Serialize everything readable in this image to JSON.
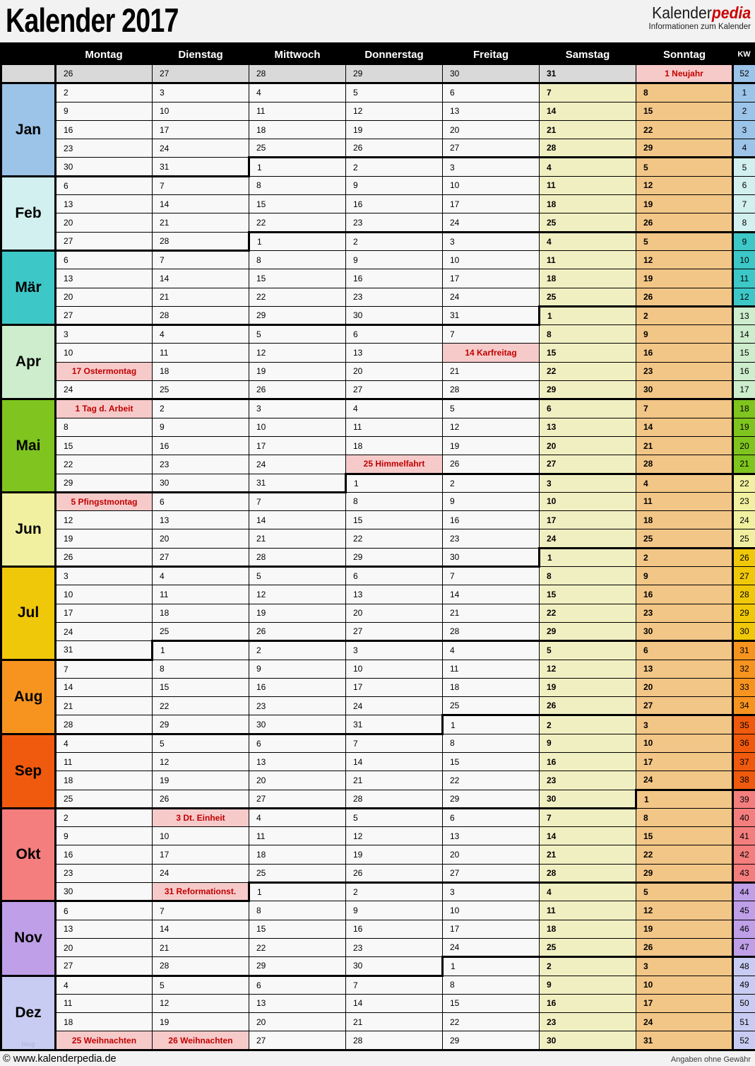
{
  "header": {
    "title": "Kalender 2017",
    "logo": {
      "part1": "Kalender",
      "part2": "pedia",
      "subtitle": "Informationen zum Kalender"
    }
  },
  "table": {
    "day_headers": [
      "Montag",
      "Dienstag",
      "Mittwoch",
      "Donnerstag",
      "Freitag",
      "Samstag",
      "Sonntag"
    ],
    "kw_header": "KW",
    "months": [
      {
        "label": "",
        "c": "gray",
        "weeks": [
          {
            "kw": "52",
            "kc": "jan",
            "days": [
              "26|g",
              "27|g",
              "28|g",
              "29|g",
              "30|g",
              "31|g",
              "1 Neujahr|h"
            ]
          }
        ]
      },
      {
        "label": "Jan",
        "c": "jan",
        "weeks": [
          {
            "kw": "1",
            "kc": "jan",
            "days": [
              "2",
              "3",
              "4",
              "5",
              "6",
              "7",
              "8"
            ]
          },
          {
            "kw": "2",
            "kc": "jan",
            "days": [
              "9",
              "10",
              "11",
              "12",
              "13",
              "14",
              "15"
            ]
          },
          {
            "kw": "3",
            "kc": "jan",
            "days": [
              "16",
              "17",
              "18",
              "19",
              "20",
              "21",
              "22"
            ]
          },
          {
            "kw": "4",
            "kc": "jan",
            "days": [
              "23",
              "24",
              "25",
              "26",
              "27",
              "28",
              "29"
            ]
          },
          {
            "kw": "5",
            "kc": "feb",
            "kt": 1,
            "days": [
              "30",
              "31",
              "1|n",
              "2|n",
              "3|n",
              "4|n",
              "5|n"
            ]
          }
        ]
      },
      {
        "label": "Feb",
        "c": "feb",
        "weeks": [
          {
            "kw": "6",
            "kc": "feb",
            "days": [
              "6",
              "7",
              "8",
              "9",
              "10",
              "11",
              "12"
            ]
          },
          {
            "kw": "7",
            "kc": "feb",
            "days": [
              "13",
              "14",
              "15",
              "16",
              "17",
              "18",
              "19"
            ]
          },
          {
            "kw": "8",
            "kc": "feb",
            "days": [
              "20",
              "21",
              "22",
              "23",
              "24",
              "25",
              "26"
            ]
          },
          {
            "kw": "9",
            "kc": "mar",
            "kt": 1,
            "days": [
              "27",
              "28",
              "1|n",
              "2|n",
              "3|n",
              "4|n",
              "5|n"
            ]
          }
        ]
      },
      {
        "label": "Mär",
        "c": "mar",
        "weeks": [
          {
            "kw": "10",
            "kc": "mar",
            "days": [
              "6",
              "7",
              "8",
              "9",
              "10",
              "11",
              "12"
            ]
          },
          {
            "kw": "11",
            "kc": "mar",
            "days": [
              "13",
              "14",
              "15",
              "16",
              "17",
              "18",
              "19"
            ]
          },
          {
            "kw": "12",
            "kc": "mar",
            "days": [
              "20",
              "21",
              "22",
              "23",
              "24",
              "25",
              "26"
            ]
          },
          {
            "kw": "13",
            "kc": "apr",
            "kt": 1,
            "days": [
              "27",
              "28",
              "29",
              "30",
              "31",
              "1|n",
              "2|n"
            ]
          }
        ]
      },
      {
        "label": "Apr",
        "c": "apr",
        "weeks": [
          {
            "kw": "14",
            "kc": "apr",
            "days": [
              "3",
              "4",
              "5",
              "6",
              "7",
              "8",
              "9"
            ]
          },
          {
            "kw": "15",
            "kc": "apr",
            "days": [
              "10",
              "11",
              "12",
              "13",
              "14 Karfreitag|h",
              "15",
              "16"
            ]
          },
          {
            "kw": "16",
            "kc": "apr",
            "days": [
              "17 Ostermontag|h",
              "18",
              "19",
              "20",
              "21",
              "22",
              "23"
            ]
          },
          {
            "kw": "17",
            "kc": "apr",
            "days": [
              "24",
              "25",
              "26",
              "27",
              "28",
              "29",
              "30"
            ]
          }
        ]
      },
      {
        "label": "Mai",
        "c": "mai",
        "weeks": [
          {
            "kw": "18",
            "kc": "mai",
            "kt": 1,
            "days": [
              "1 Tag d. Arbeit|h",
              "2",
              "3",
              "4",
              "5",
              "6",
              "7"
            ]
          },
          {
            "kw": "19",
            "kc": "mai",
            "days": [
              "8",
              "9",
              "10",
              "11",
              "12",
              "13",
              "14"
            ]
          },
          {
            "kw": "20",
            "kc": "mai",
            "days": [
              "15",
              "16",
              "17",
              "18",
              "19",
              "20",
              "21"
            ]
          },
          {
            "kw": "21",
            "kc": "mai",
            "days": [
              "22",
              "23",
              "24",
              "25 Himmelfahrt|h",
              "26",
              "27",
              "28"
            ]
          },
          {
            "kw": "22",
            "kc": "jun",
            "kt": 1,
            "days": [
              "29",
              "30",
              "31",
              "1|n",
              "2|n",
              "3|n",
              "4|n"
            ]
          }
        ]
      },
      {
        "label": "Jun",
        "c": "jun",
        "weeks": [
          {
            "kw": "23",
            "kc": "jun",
            "days": [
              "5 Pfingstmontag|h",
              "6",
              "7",
              "8",
              "9",
              "10",
              "11"
            ]
          },
          {
            "kw": "24",
            "kc": "jun",
            "days": [
              "12",
              "13",
              "14",
              "15",
              "16",
              "17",
              "18"
            ]
          },
          {
            "kw": "25",
            "kc": "jun",
            "days": [
              "19",
              "20",
              "21",
              "22",
              "23",
              "24",
              "25"
            ]
          },
          {
            "kw": "26",
            "kc": "jul",
            "kt": 1,
            "days": [
              "26",
              "27",
              "28",
              "29",
              "30",
              "1|n",
              "2|n"
            ]
          }
        ]
      },
      {
        "label": "Jul",
        "c": "jul",
        "weeks": [
          {
            "kw": "27",
            "kc": "jul",
            "days": [
              "3",
              "4",
              "5",
              "6",
              "7",
              "8",
              "9"
            ]
          },
          {
            "kw": "28",
            "kc": "jul",
            "days": [
              "10",
              "11",
              "12",
              "13",
              "14",
              "15",
              "16"
            ]
          },
          {
            "kw": "29",
            "kc": "jul",
            "days": [
              "17",
              "18",
              "19",
              "20",
              "21",
              "22",
              "23"
            ]
          },
          {
            "kw": "30",
            "kc": "jul",
            "days": [
              "24",
              "25",
              "26",
              "27",
              "28",
              "29",
              "30"
            ]
          },
          {
            "kw": "31",
            "kc": "aug",
            "kt": 1,
            "days": [
              "31",
              "1|n",
              "2|n",
              "3|n",
              "4|n",
              "5|n",
              "6|n"
            ]
          }
        ]
      },
      {
        "label": "Aug",
        "c": "aug",
        "weeks": [
          {
            "kw": "32",
            "kc": "aug",
            "days": [
              "7",
              "8",
              "9",
              "10",
              "11",
              "12",
              "13"
            ]
          },
          {
            "kw": "33",
            "kc": "aug",
            "days": [
              "14",
              "15",
              "16",
              "17",
              "18",
              "19",
              "20"
            ]
          },
          {
            "kw": "34",
            "kc": "aug",
            "days": [
              "21",
              "22",
              "23",
              "24",
              "25",
              "26",
              "27"
            ]
          },
          {
            "kw": "35",
            "kc": "sep",
            "kt": 1,
            "days": [
              "28",
              "29",
              "30",
              "31",
              "1|n",
              "2|n",
              "3|n"
            ]
          }
        ]
      },
      {
        "label": "Sep",
        "c": "sep",
        "weeks": [
          {
            "kw": "36",
            "kc": "sep",
            "days": [
              "4",
              "5",
              "6",
              "7",
              "8",
              "9",
              "10"
            ]
          },
          {
            "kw": "37",
            "kc": "sep",
            "days": [
              "11",
              "12",
              "13",
              "14",
              "15",
              "16",
              "17"
            ]
          },
          {
            "kw": "38",
            "kc": "sep",
            "days": [
              "18",
              "19",
              "20",
              "21",
              "22",
              "23",
              "24"
            ]
          },
          {
            "kw": "39",
            "kc": "okt",
            "kt": 1,
            "days": [
              "25",
              "26",
              "27",
              "28",
              "29",
              "30",
              "1|n"
            ]
          }
        ]
      },
      {
        "label": "Okt",
        "c": "okt",
        "weeks": [
          {
            "kw": "40",
            "kc": "okt",
            "days": [
              "2",
              "3 Dt. Einheit|h",
              "4",
              "5",
              "6",
              "7",
              "8"
            ]
          },
          {
            "kw": "41",
            "kc": "okt",
            "days": [
              "9",
              "10",
              "11",
              "12",
              "13",
              "14",
              "15"
            ]
          },
          {
            "kw": "42",
            "kc": "okt",
            "days": [
              "16",
              "17",
              "18",
              "19",
              "20",
              "21",
              "22"
            ]
          },
          {
            "kw": "43",
            "kc": "okt",
            "days": [
              "23",
              "24",
              "25",
              "26",
              "27",
              "28",
              "29"
            ]
          },
          {
            "kw": "44",
            "kc": "nov",
            "kt": 1,
            "days": [
              "30",
              "31 Reformationst.|h",
              "1|n",
              "2|n",
              "3|n",
              "4|n",
              "5|n"
            ]
          }
        ]
      },
      {
        "label": "Nov",
        "c": "nov",
        "weeks": [
          {
            "kw": "45",
            "kc": "nov",
            "days": [
              "6",
              "7",
              "8",
              "9",
              "10",
              "11",
              "12"
            ]
          },
          {
            "kw": "46",
            "kc": "nov",
            "days": [
              "13",
              "14",
              "15",
              "16",
              "17",
              "18",
              "19"
            ]
          },
          {
            "kw": "47",
            "kc": "nov",
            "days": [
              "20",
              "21",
              "22",
              "23",
              "24",
              "25",
              "26"
            ]
          },
          {
            "kw": "48",
            "kc": "dez",
            "kt": 1,
            "days": [
              "27",
              "28",
              "29",
              "30",
              "1|n",
              "2|n",
              "3|n"
            ]
          }
        ]
      },
      {
        "label": "Dez",
        "c": "dez",
        "watermark": "blog",
        "weeks": [
          {
            "kw": "49",
            "kc": "dez",
            "days": [
              "4",
              "5",
              "6",
              "7",
              "8",
              "9",
              "10"
            ]
          },
          {
            "kw": "50",
            "kc": "dez",
            "days": [
              "11",
              "12",
              "13",
              "14",
              "15",
              "16",
              "17"
            ]
          },
          {
            "kw": "51",
            "kc": "dez",
            "days": [
              "18",
              "19",
              "20",
              "21",
              "22",
              "23",
              "24"
            ]
          },
          {
            "kw": "52",
            "kc": "dez",
            "days": [
              "25 Weihnachten|h",
              "26 Weihnachten|h",
              "27",
              "28",
              "29",
              "30",
              "31"
            ]
          }
        ]
      }
    ]
  },
  "footer": {
    "left": "© www.kalenderpedia.de",
    "right": "Angaben ohne Gewähr"
  },
  "colors": {
    "jan": "#9CC3E8",
    "feb": "#D2F0F0",
    "mar": "#3DC7C7",
    "apr": "#CDEDCC",
    "mai": "#7FC41F",
    "jun": "#F0F0A0",
    "jul": "#F0C80A",
    "aug": "#F79420",
    "sep": "#F05A0E",
    "okt": "#F47E7E",
    "nov": "#BF9FE8",
    "dez": "#C9CCF2",
    "gray": "#D9D9D9",
    "weekday_bg": "#F8F8F8",
    "saturday_bg": "#F0EFC2",
    "sunday_bg": "#F2C687",
    "holiday_bg": "#F7CACA",
    "holiday_text": "#C00000",
    "header_bg": "#000000",
    "accent_red": "#CC0000"
  }
}
